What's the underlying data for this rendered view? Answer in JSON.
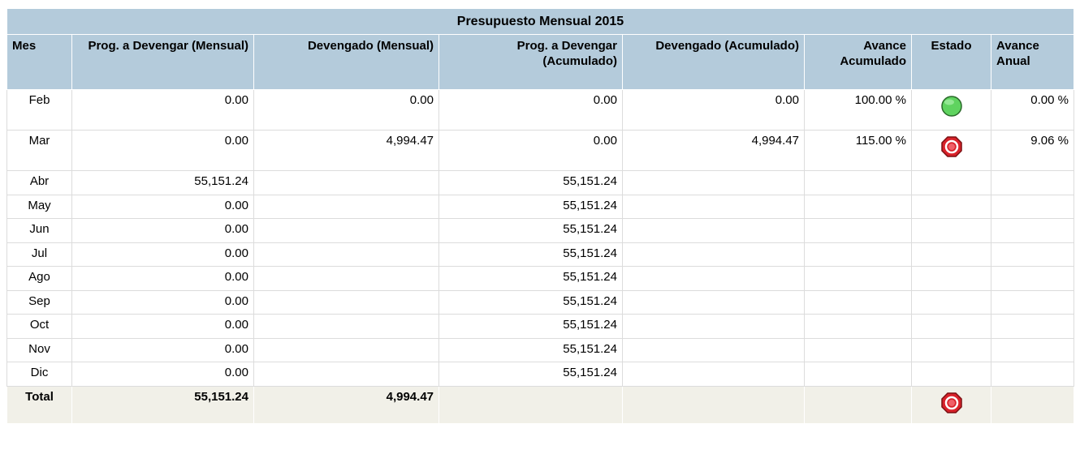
{
  "title": "Presupuesto Mensual 2015",
  "headers": [
    "Mes",
    "Prog. a Devengar (Mensual)",
    "Devengado (Mensual)",
    "Prog. a Devengar (Acumulado)",
    "Devengado (Acumulado)",
    "Avance Acumulado",
    "Estado",
    "Avance Anual"
  ],
  "rows": [
    {
      "cells": [
        "Feb",
        "0.00",
        "0.00",
        "0.00",
        "0.00",
        "100.00 %",
        null,
        "0.00 %"
      ],
      "estado": "green"
    },
    {
      "cells": [
        "Mar",
        "0.00",
        "4,994.47",
        "0.00",
        "4,994.47",
        "115.00 %",
        null,
        "9.06 %"
      ],
      "estado": "red"
    },
    {
      "cells": [
        "Abr",
        "55,151.24",
        null,
        "55,151.24",
        null,
        null,
        null,
        null
      ],
      "estado": null
    },
    {
      "cells": [
        "May",
        "0.00",
        null,
        "55,151.24",
        null,
        null,
        null,
        null
      ],
      "estado": null
    },
    {
      "cells": [
        "Jun",
        "0.00",
        null,
        "55,151.24",
        null,
        null,
        null,
        null
      ],
      "estado": null
    },
    {
      "cells": [
        "Jul",
        "0.00",
        null,
        "55,151.24",
        null,
        null,
        null,
        null
      ],
      "estado": null
    },
    {
      "cells": [
        "Ago",
        "0.00",
        null,
        "55,151.24",
        null,
        null,
        null,
        null
      ],
      "estado": null
    },
    {
      "cells": [
        "Sep",
        "0.00",
        null,
        "55,151.24",
        null,
        null,
        null,
        null
      ],
      "estado": null
    },
    {
      "cells": [
        "Oct",
        "0.00",
        null,
        "55,151.24",
        null,
        null,
        null,
        null
      ],
      "estado": null
    },
    {
      "cells": [
        "Nov",
        "0.00",
        null,
        "55,151.24",
        null,
        null,
        null,
        null
      ],
      "estado": null
    },
    {
      "cells": [
        "Dic",
        "0.00",
        null,
        "55,151.24",
        null,
        null,
        null,
        null
      ],
      "estado": null
    }
  ],
  "total": {
    "cells": [
      "Total",
      "55,151.24",
      "4,994.47",
      null,
      null,
      null,
      null,
      null
    ],
    "estado": "red"
  }
}
